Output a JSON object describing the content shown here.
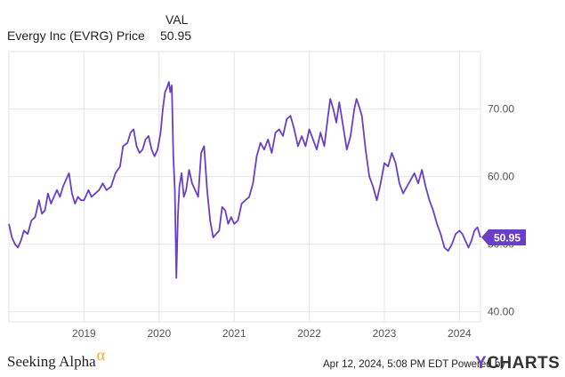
{
  "legend": {
    "column_header": "VAL",
    "series_name": "Evergy Inc (EVRG) Price",
    "series_value": "50.95"
  },
  "colors": {
    "line": "#6a3fc7",
    "grid": "#e6e6e6",
    "axis_text": "#555555",
    "badge_bg": "#6a3fc7",
    "badge_text": "#ffffff"
  },
  "chart_data": {
    "type": "line",
    "title": "",
    "xlabel": "",
    "ylabel": "",
    "xlim": [
      2018.0,
      2024.28
    ],
    "ylim": [
      38.5,
      78.5
    ],
    "y_ticks": [
      40,
      50,
      60,
      70
    ],
    "y_tick_labels": [
      "40.00",
      "50.00",
      "60.00",
      "70.00"
    ],
    "x_ticks": [
      2019,
      2020,
      2021,
      2022,
      2023,
      2024
    ],
    "x_tick_labels": [
      "2019",
      "2020",
      "2021",
      "2022",
      "2023",
      "2024"
    ],
    "grid": true,
    "y_axis_side": "right",
    "last_value_label": "50.95",
    "series": [
      {
        "name": "Evergy Inc (EVRG) Price",
        "x": [
          2018.0,
          2018.04,
          2018.08,
          2018.12,
          2018.16,
          2018.2,
          2018.25,
          2018.3,
          2018.35,
          2018.4,
          2018.44,
          2018.48,
          2018.52,
          2018.56,
          2018.6,
          2018.64,
          2018.68,
          2018.72,
          2018.76,
          2018.8,
          2018.84,
          2018.88,
          2018.92,
          2018.96,
          2019.0,
          2019.06,
          2019.1,
          2019.15,
          2019.2,
          2019.25,
          2019.3,
          2019.36,
          2019.42,
          2019.48,
          2019.52,
          2019.58,
          2019.62,
          2019.66,
          2019.7,
          2019.74,
          2019.78,
          2019.82,
          2019.86,
          2019.9,
          2019.94,
          2019.98,
          2020.02,
          2020.05,
          2020.08,
          2020.1,
          2020.13,
          2020.15,
          2020.17,
          2020.19,
          2020.21,
          2020.23,
          2020.25,
          2020.27,
          2020.3,
          2020.33,
          2020.36,
          2020.4,
          2020.44,
          2020.48,
          2020.52,
          2020.56,
          2020.6,
          2020.64,
          2020.68,
          2020.72,
          2020.76,
          2020.8,
          2020.84,
          2020.88,
          2020.92,
          2020.96,
          2021.0,
          2021.05,
          2021.1,
          2021.15,
          2021.2,
          2021.25,
          2021.3,
          2021.35,
          2021.4,
          2021.45,
          2021.5,
          2021.55,
          2021.6,
          2021.65,
          2021.7,
          2021.75,
          2021.8,
          2021.85,
          2021.9,
          2021.95,
          2022.0,
          2022.05,
          2022.1,
          2022.15,
          2022.2,
          2022.25,
          2022.28,
          2022.32,
          2022.36,
          2022.4,
          2022.45,
          2022.5,
          2022.55,
          2022.6,
          2022.63,
          2022.66,
          2022.7,
          2022.75,
          2022.8,
          2022.85,
          2022.9,
          2022.95,
          2023.0,
          2023.05,
          2023.1,
          2023.15,
          2023.2,
          2023.25,
          2023.3,
          2023.35,
          2023.4,
          2023.45,
          2023.5,
          2023.55,
          2023.6,
          2023.65,
          2023.7,
          2023.75,
          2023.8,
          2023.85,
          2023.9,
          2023.95,
          2024.0,
          2024.04,
          2024.08,
          2024.12,
          2024.16,
          2024.2,
          2024.24,
          2024.28
        ],
        "values": [
          53.0,
          51.0,
          50.0,
          49.5,
          50.5,
          52.0,
          51.5,
          53.5,
          54.0,
          56.5,
          54.5,
          55.0,
          57.5,
          56.0,
          57.0,
          58.0,
          57.0,
          58.5,
          59.5,
          60.5,
          57.5,
          56.0,
          57.0,
          56.5,
          56.5,
          58.0,
          57.0,
          57.5,
          58.0,
          59.0,
          58.0,
          58.5,
          60.5,
          61.5,
          64.5,
          65.0,
          66.5,
          67.0,
          64.5,
          63.5,
          64.0,
          65.5,
          66.0,
          64.0,
          63.0,
          64.0,
          66.5,
          70.0,
          72.5,
          73.0,
          74.0,
          72.5,
          73.5,
          63.0,
          58.0,
          45.0,
          54.0,
          58.5,
          60.5,
          57.0,
          58.0,
          61.0,
          59.0,
          58.0,
          57.0,
          63.5,
          64.5,
          58.0,
          53.5,
          51.0,
          51.5,
          52.0,
          55.5,
          55.0,
          53.0,
          54.0,
          53.0,
          53.5,
          56.0,
          56.5,
          57.0,
          59.0,
          63.0,
          65.0,
          64.0,
          65.5,
          63.5,
          66.5,
          67.0,
          66.0,
          68.5,
          69.0,
          67.0,
          64.5,
          66.0,
          64.5,
          67.0,
          65.5,
          64.0,
          66.5,
          64.5,
          69.0,
          71.5,
          70.0,
          68.0,
          71.0,
          67.5,
          64.0,
          66.0,
          70.0,
          71.5,
          70.5,
          69.0,
          64.0,
          60.0,
          58.5,
          56.5,
          59.0,
          62.0,
          61.5,
          63.5,
          62.0,
          59.0,
          57.5,
          58.5,
          59.5,
          60.5,
          59.0,
          61.0,
          58.5,
          56.5,
          55.0,
          53.0,
          51.5,
          49.5,
          49.0,
          50.0,
          51.5,
          52.0,
          51.5,
          50.5,
          49.5,
          50.5,
          52.0,
          52.5,
          51.0
        ]
      }
    ]
  },
  "footer": {
    "brand": "Seeking Alpha",
    "brand_symbol": "α",
    "timestamp": "Apr 12, 2024, 5:08 PM EDT  Powered by",
    "provider_y": "Y",
    "provider_rest": "CHARTS"
  }
}
